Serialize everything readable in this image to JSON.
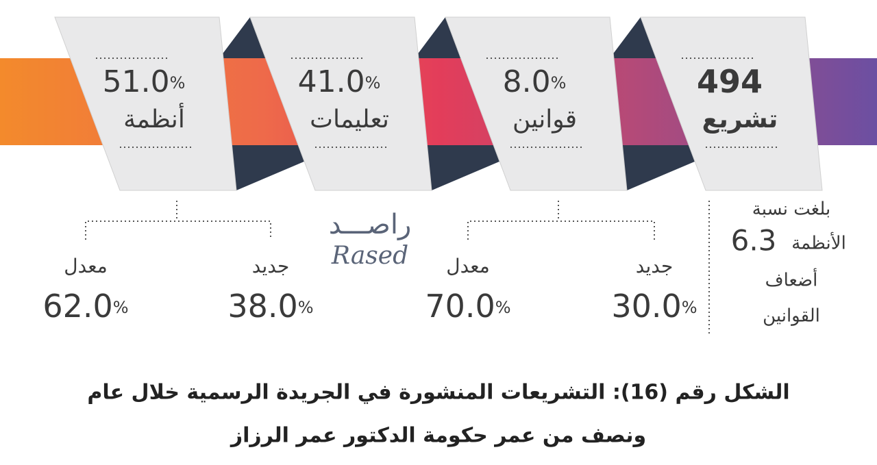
{
  "banner": {
    "items": [
      {
        "value": "51.0",
        "unit": "%",
        "label": "أنظمة"
      },
      {
        "value": "41.0",
        "unit": "%",
        "label": "تعليمات"
      },
      {
        "value": "8.0",
        "unit": "%",
        "label": "قوانين"
      },
      {
        "value": "494",
        "label": "تشريع"
      }
    ]
  },
  "breakdowns": [
    [
      {
        "label": "معدل",
        "value": "62.0",
        "unit": "%"
      },
      {
        "label": "جديد",
        "value": "38.0",
        "unit": "%"
      }
    ],
    [
      {
        "label": "معدل",
        "value": "70.0",
        "unit": "%"
      },
      {
        "label": "جديد",
        "value": "30.0",
        "unit": "%"
      }
    ]
  ],
  "logo": {
    "arabic": "راصـــد",
    "latin": "Rased"
  },
  "note": {
    "line1": "بلغت نسبة",
    "line2": "الأنظمة",
    "number": "6.3",
    "line3": "أضعاف",
    "line4": "القوانين"
  },
  "caption": [
    "الشكل رقم (16): التشريعات المنشورة في الجريدة الرسمية خلال عام",
    "ونصف من عمر حكومة الدكتور عمر الرزاز"
  ]
}
